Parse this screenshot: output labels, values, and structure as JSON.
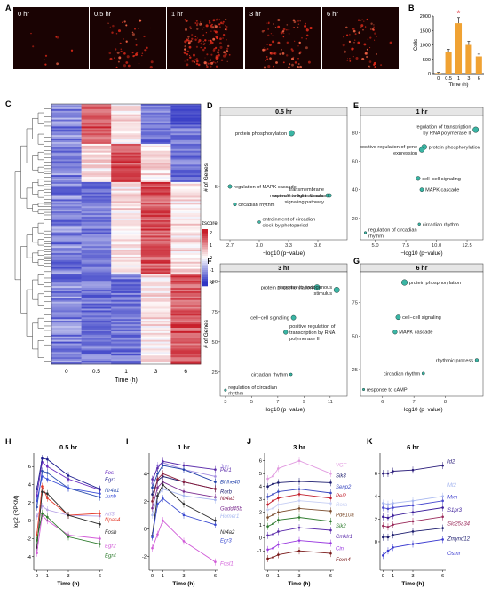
{
  "panels": {
    "A": "A",
    "B": "B",
    "C": "C",
    "D": "D",
    "E": "E",
    "F": "F",
    "G": "G",
    "H": "H",
    "I": "I",
    "J": "J",
    "K": "K"
  },
  "colors": {
    "teal": "#3ab5a4",
    "bar": "#f0a233",
    "heat_high": "#c81e2a",
    "heat_low": "#3036c4",
    "star": "#e0303a"
  },
  "panel_a": {
    "time_labels": [
      "0 hr",
      "0.5 hr",
      "1 hr",
      "3 hr",
      "6 hr"
    ],
    "spot_density": [
      0.05,
      0.3,
      0.9,
      0.5,
      0.35
    ]
  },
  "panel_b": {
    "chart_data": {
      "type": "bar",
      "categories": [
        "0",
        "0.5",
        "1",
        "3",
        "6"
      ],
      "values": [
        20,
        750,
        1750,
        1000,
        600
      ],
      "ylabel": "Cells",
      "xlabel": "Time (h)",
      "ytick_labels": [
        "0",
        "500",
        "1000",
        "1500",
        "2000"
      ],
      "ylim": [
        0,
        2000
      ],
      "significance_marker": "*"
    }
  },
  "panel_c": {
    "x_ticks": [
      "0",
      "0.5",
      "1",
      "3",
      "6"
    ],
    "xlabel": "Time (h)",
    "legend_title": "zscore",
    "legend_ticks": [
      "2",
      "1",
      "0",
      "-1",
      "-2"
    ]
  },
  "go_panels": [
    {
      "key": "D",
      "title": "0.5 hr",
      "ylabel": "# of Genes",
      "xlabel": "−log10 (p−value)",
      "x_ticks": [
        "2.7",
        "3.0",
        "3.3",
        "3.6"
      ],
      "y_ticks": [
        "5"
      ],
      "chart_data": {
        "type": "scatter",
        "xlim": [
          2.6,
          3.9
        ],
        "ylim": [
          2,
          9
        ],
        "points": [
          {
            "label": "protein phosphorylation",
            "x": 3.33,
            "y": 8,
            "label_side": "left"
          },
          {
            "label": "regulation of MAPK cascade",
            "x": 2.7,
            "y": 5,
            "label_side": "right"
          },
          {
            "label": "transmembrane serine/threonine kinase signaling pathway",
            "x": 3.7,
            "y": 4.5,
            "label_side": "left"
          },
          {
            "label": "response to light stimulus",
            "x": 3.72,
            "y": 4.5,
            "label_side": "left"
          },
          {
            "label": "circadian rhythm",
            "x": 2.75,
            "y": 4,
            "label_side": "right"
          },
          {
            "label": "entrainment of circadian clock by photoperiod",
            "x": 3.0,
            "y": 3,
            "label_side": "right"
          }
        ]
      }
    },
    {
      "key": "E",
      "title": "1 hr",
      "ylabel": "",
      "xlabel": "−log10 (p−value)",
      "x_ticks": [
        "5.0",
        "7.5",
        "10.0",
        "12.5"
      ],
      "y_ticks": [
        "20",
        "40",
        "60",
        "80"
      ],
      "chart_data": {
        "type": "scatter",
        "xlim": [
          3.8,
          13.8
        ],
        "ylim": [
          5,
          92
        ],
        "points": [
          {
            "label": "regulation of transcription by RNA polymerase II",
            "x": 13.2,
            "y": 82,
            "label_side": "left"
          },
          {
            "label": "protein phosphorylation",
            "x": 9.0,
            "y": 70,
            "label_side": "right"
          },
          {
            "label": "positive regulation of gene expression",
            "x": 8.8,
            "y": 68,
            "label_side": "left"
          },
          {
            "label": "cell−cell signaling",
            "x": 8.5,
            "y": 48,
            "label_side": "right"
          },
          {
            "label": "MAPK cascade",
            "x": 8.8,
            "y": 40,
            "label_side": "right"
          },
          {
            "label": "circadian rhythm",
            "x": 8.6,
            "y": 16,
            "label_side": "right"
          },
          {
            "label": "regulation of circadian rhythm",
            "x": 4.2,
            "y": 10,
            "label_side": "right"
          }
        ]
      }
    },
    {
      "key": "F",
      "title": "3 hr",
      "ylabel": "# of Genes",
      "xlabel": "−log10 (p−value)",
      "x_ticks": [
        "3",
        "5",
        "7",
        "9",
        "11"
      ],
      "y_ticks": [
        "25",
        "50",
        "75",
        "100"
      ],
      "chart_data": {
        "type": "scatter",
        "xlim": [
          2.6,
          12.3
        ],
        "ylim": [
          5,
          108
        ],
        "points": [
          {
            "label": "protein phosphorylation",
            "x": 10.0,
            "y": 95,
            "label_side": "left"
          },
          {
            "label": "response to endogenous stimulus",
            "x": 11.5,
            "y": 93,
            "label_side": "left"
          },
          {
            "label": "cell−cell signaling",
            "x": 8.2,
            "y": 70,
            "label_side": "left"
          },
          {
            "label": "positive regulation of transcription by RNA polymerase II",
            "x": 7.6,
            "y": 58,
            "label_side": "right"
          },
          {
            "label": "circadian rhythm",
            "x": 8.0,
            "y": 23,
            "label_side": "left"
          },
          {
            "label": "regulation of circadian rhythm",
            "x": 3.0,
            "y": 10,
            "label_side": "right"
          }
        ]
      }
    },
    {
      "key": "G",
      "title": "6 hr",
      "ylabel": "",
      "xlabel": "−log10 (p−value)",
      "x_ticks": [
        "6",
        "7",
        "8"
      ],
      "y_ticks": [
        "25",
        "50",
        "75"
      ],
      "chart_data": {
        "type": "scatter",
        "xlim": [
          5.3,
          9.2
        ],
        "ylim": [
          5,
          98
        ],
        "points": [
          {
            "label": "protein phosphorylation",
            "x": 6.7,
            "y": 90,
            "label_side": "right"
          },
          {
            "label": "cell−cell signaling",
            "x": 6.5,
            "y": 64,
            "label_side": "right"
          },
          {
            "label": "MAPK cascade",
            "x": 6.4,
            "y": 53,
            "label_side": "right"
          },
          {
            "label": "rhythmic process",
            "x": 9.0,
            "y": 32,
            "label_side": "left"
          },
          {
            "label": "circadian rhythm",
            "x": 7.3,
            "y": 22,
            "label_side": "left"
          },
          {
            "label": "response to cAMP",
            "x": 5.4,
            "y": 10,
            "label_side": "right"
          }
        ]
      }
    }
  ],
  "line_panels": [
    {
      "key": "H",
      "title": "0.5 hr",
      "ylabel": "log2 (RPKM)",
      "xlabel": "Time (h)",
      "x_ticks": [
        "0",
        "1",
        "3",
        "6"
      ],
      "y_ticks": [
        "-4",
        "-2",
        "0",
        "2",
        "4",
        "6"
      ],
      "chart_data": {
        "type": "line",
        "x": [
          0,
          0.5,
          1,
          3,
          6
        ],
        "ylim": [
          -5.5,
          7.5
        ],
        "series": [
          {
            "name": "Fos",
            "color": "#6a2cc0",
            "values": [
              2.8,
              6.5,
              6.0,
              4.6,
              3.4
            ]
          },
          {
            "name": "Egr1",
            "color": "#1c1c8e",
            "values": [
              3.5,
              6.9,
              6.8,
              5.0,
              3.5
            ]
          },
          {
            "name": "Nr4a1",
            "color": "#2d4fb0",
            "values": [
              1.5,
              5.5,
              5.3,
              3.6,
              2.6
            ]
          },
          {
            "name": "Junb",
            "color": "#3b4fd8",
            "values": [
              2.2,
              4.9,
              4.6,
              3.6,
              3.0
            ]
          },
          {
            "name": "Atf3",
            "color": "#b6a2e6",
            "values": [
              0.5,
              1.6,
              1.2,
              0.6,
              0.5
            ]
          },
          {
            "name": "Npas4",
            "color": "#e43a2a",
            "values": [
              -1.6,
              3.8,
              2.5,
              0.6,
              0.8
            ]
          },
          {
            "name": "Fosb",
            "color": "#2a2a2a",
            "values": [
              -3.0,
              3.2,
              3.0,
              0.6,
              -0.4
            ]
          },
          {
            "name": "Egr2",
            "color": "#d25ad8",
            "values": [
              -3.6,
              0.6,
              0.0,
              -1.6,
              -2.0
            ]
          },
          {
            "name": "Egr4",
            "color": "#2c7a2c",
            "values": [
              -2.2,
              0.8,
              0.4,
              -1.8,
              -2.6
            ]
          }
        ]
      }
    },
    {
      "key": "I",
      "title": "1 hr",
      "ylabel": "",
      "xlabel": "Time (h)",
      "x_ticks": [
        "0",
        "1",
        "3",
        "6"
      ],
      "y_ticks": [
        "-2",
        "0",
        "2",
        "4"
      ],
      "chart_data": {
        "type": "line",
        "x": [
          0,
          0.5,
          1,
          3,
          6
        ],
        "ylim": [
          -3,
          5.5
        ],
        "series": [
          {
            "name": "Jun",
            "color": "#a48ee0",
            "values": [
              3.3,
              4.6,
              4.8,
              4.3,
              3.8
            ]
          },
          {
            "name": "Per1",
            "color": "#5a2aaa",
            "values": [
              3.6,
              4.4,
              4.9,
              4.6,
              4.3
            ]
          },
          {
            "name": "Bhlhe40",
            "color": "#1f3fa8",
            "values": [
              3.0,
              4.0,
              4.6,
              4.3,
              3.4
            ]
          },
          {
            "name": "Rorb",
            "color": "#1c1c6e",
            "values": [
              2.5,
              3.5,
              3.8,
              3.4,
              2.9
            ]
          },
          {
            "name": "Nr4a3",
            "color": "#8a1c3a",
            "values": [
              2.0,
              3.6,
              4.0,
              3.4,
              2.9
            ]
          },
          {
            "name": "Gadd45b",
            "color": "#7a2a8e",
            "values": [
              1.5,
              3.0,
              3.4,
              2.7,
              2.3
            ]
          },
          {
            "name": "Homer1",
            "color": "#a8b8f0",
            "values": [
              1.0,
              2.4,
              2.9,
              2.4,
              2.1
            ]
          },
          {
            "name": "Nr4a2",
            "color": "#2a2a2a",
            "values": [
              -0.5,
              2.4,
              3.2,
              1.8,
              0.6
            ]
          },
          {
            "name": "Egr3",
            "color": "#3a4ad0",
            "values": [
              -0.6,
              1.8,
              2.2,
              1.0,
              0.3
            ]
          },
          {
            "name": "Fosl1",
            "color": "#d05ad8",
            "values": [
              -1.4,
              -0.4,
              0.6,
              -0.9,
              -2.4
            ]
          }
        ]
      }
    },
    {
      "key": "J",
      "title": "3 hr",
      "ylabel": "",
      "xlabel": "Time (h)",
      "x_ticks": [
        "0",
        "1",
        "3",
        "6"
      ],
      "y_ticks": [
        "-1",
        "0",
        "1",
        "2",
        "3",
        "4",
        "5",
        "6"
      ],
      "chart_data": {
        "type": "line",
        "x": [
          0,
          0.5,
          1,
          3,
          6
        ],
        "ylim": [
          -2.5,
          6.6
        ],
        "series": [
          {
            "name": "VGF",
            "color": "#e19ae0",
            "values": [
              4.6,
              4.8,
              5.4,
              6.0,
              5.0
            ]
          },
          {
            "name": "Sik3",
            "color": "#1c1c6e",
            "values": [
              4.0,
              4.2,
              4.3,
              4.4,
              4.3
            ]
          },
          {
            "name": "Senp2",
            "color": "#3a48c0",
            "values": [
              3.2,
              3.4,
              3.6,
              3.8,
              3.5
            ]
          },
          {
            "name": "Pel2",
            "color": "#c21c2a",
            "values": [
              2.6,
              2.9,
              3.1,
              3.4,
              3.1
            ]
          },
          {
            "name": "Rora",
            "color": "#c6cef4",
            "values": [
              2.2,
              2.3,
              2.6,
              2.9,
              2.7
            ]
          },
          {
            "name": "Pde10a",
            "color": "#7a4a2a",
            "values": [
              1.6,
              1.8,
              2.0,
              2.3,
              2.1
            ]
          },
          {
            "name": "Sik2",
            "color": "#2c7a2c",
            "values": [
              0.9,
              1.1,
              1.4,
              1.6,
              1.3
            ]
          },
          {
            "name": "Cmklr1",
            "color": "#5a2aaa",
            "values": [
              0.2,
              0.3,
              0.5,
              0.8,
              0.6
            ]
          },
          {
            "name": "Cin",
            "color": "#9a3ae0",
            "values": [
              -0.9,
              -0.8,
              -0.5,
              -0.2,
              -0.4
            ]
          },
          {
            "name": "Foxn4",
            "color": "#7a1a1a",
            "values": [
              -1.6,
              -1.5,
              -1.3,
              -1.0,
              -1.2
            ]
          }
        ]
      }
    },
    {
      "key": "K",
      "title": "6 hr",
      "ylabel": "",
      "xlabel": "Time (h)",
      "x_ticks": [
        "0",
        "1",
        "3",
        "6"
      ],
      "y_ticks": [
        "0",
        "2",
        "4",
        "6"
      ],
      "chart_data": {
        "type": "line",
        "x": [
          0,
          0.5,
          1,
          3,
          6
        ],
        "ylim": [
          -2.5,
          7.8
        ],
        "series": [
          {
            "name": "Id2",
            "color": "#2a1c7a",
            "values": [
              6.0,
              6.0,
              6.2,
              6.3,
              6.7
            ]
          },
          {
            "name": "Mt2",
            "color": "#a8b8f0",
            "values": [
              3.4,
              3.3,
              3.4,
              3.6,
              4.0
            ]
          },
          {
            "name": "Mxn",
            "color": "#4a4ad0",
            "values": [
              3.0,
              2.9,
              3.0,
              3.2,
              3.6
            ]
          },
          {
            "name": "S1pr3",
            "color": "#3a1c9a",
            "values": [
              2.2,
              2.1,
              2.3,
              2.6,
              3.0
            ]
          },
          {
            "name": "Slc25a34",
            "color": "#9a2a5a",
            "values": [
              1.4,
              1.3,
              1.5,
              1.8,
              2.2
            ]
          },
          {
            "name": "Zmynd12",
            "color": "#1c1c6e",
            "values": [
              0.4,
              0.4,
              0.6,
              0.9,
              1.2
            ]
          },
          {
            "name": "Osmr",
            "color": "#3a3ad0",
            "values": [
              -1.2,
              -0.8,
              -0.5,
              -0.2,
              0.2
            ]
          }
        ]
      }
    }
  ]
}
